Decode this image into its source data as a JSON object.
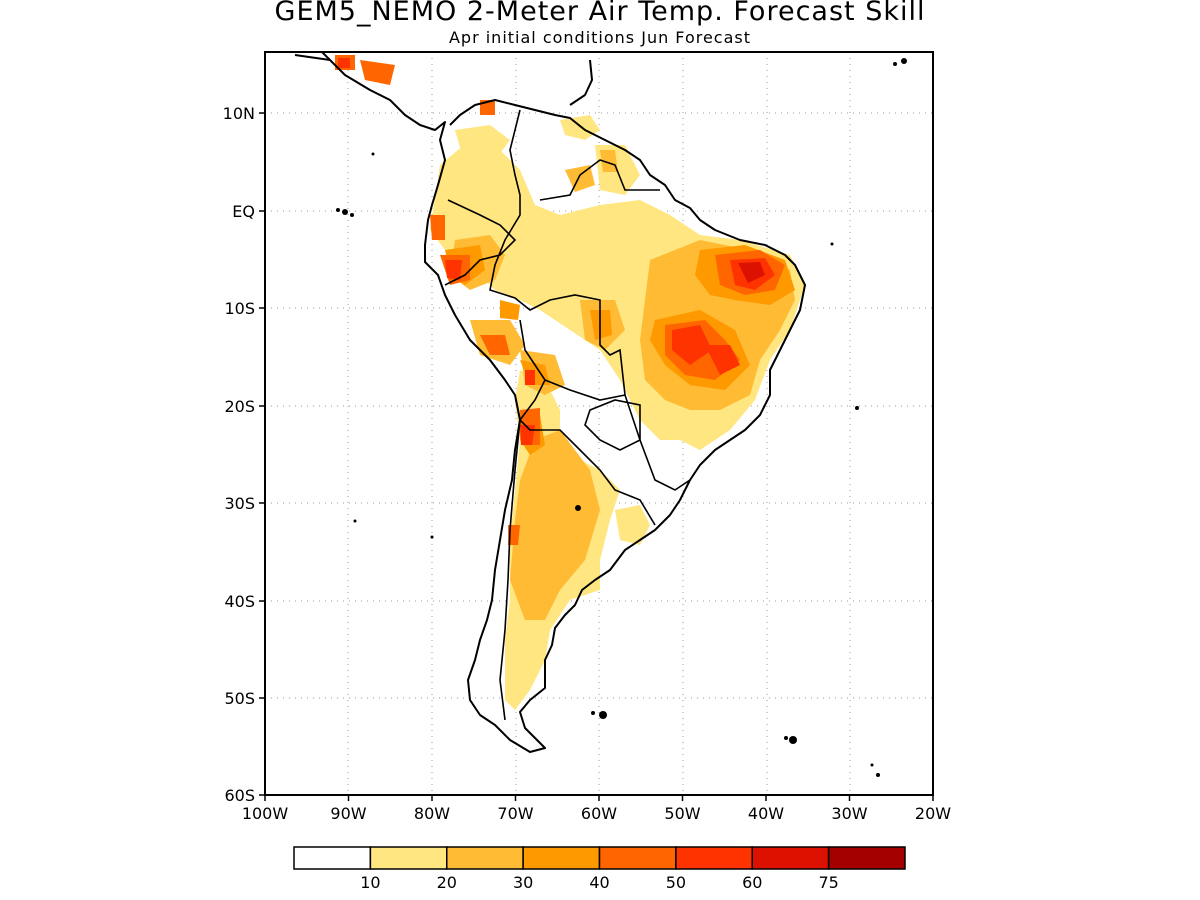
{
  "title": "GEM5_NEMO 2-Meter Air Temp. Forecast Skill",
  "subtitle": "Apr initial conditions  Jun Forecast",
  "map": {
    "lon_range": [
      -100,
      -20
    ],
    "lat_range": [
      -60,
      15
    ],
    "lon_labels": [
      "100W",
      "90W",
      "80W",
      "70W",
      "60W",
      "50W",
      "40W",
      "30W",
      "20W"
    ],
    "lat_labels": [
      "10N",
      "EQ",
      "10S",
      "20S",
      "30S",
      "40S",
      "50S",
      "60S"
    ],
    "gridlines": true,
    "skill_field_regions": [
      {
        "region": "Central America",
        "level": "50-60"
      },
      {
        "region": "Colombia / Venezuela",
        "level": "20-30"
      },
      {
        "region": "Ecuador / Peru coast",
        "level": "50-60"
      },
      {
        "region": "Northeast Brazil",
        "level": "60-75"
      },
      {
        "region": "Central Brazil",
        "level": "50-60"
      },
      {
        "region": "Bolivia",
        "level": "40-50"
      },
      {
        "region": "Northern Chile / Atacama",
        "level": "50-60"
      },
      {
        "region": "Argentina",
        "level": "20-30"
      },
      {
        "region": "Patagonia",
        "level": "10-20"
      }
    ]
  },
  "colorbar": {
    "colors": [
      "#ffffff",
      "#ffe680",
      "#ffbb33",
      "#ff9900",
      "#ff6600",
      "#ff3300",
      "#dd1100",
      "#a50000"
    ],
    "labels": [
      "10",
      "20",
      "30",
      "40",
      "50",
      "60",
      "75"
    ]
  }
}
